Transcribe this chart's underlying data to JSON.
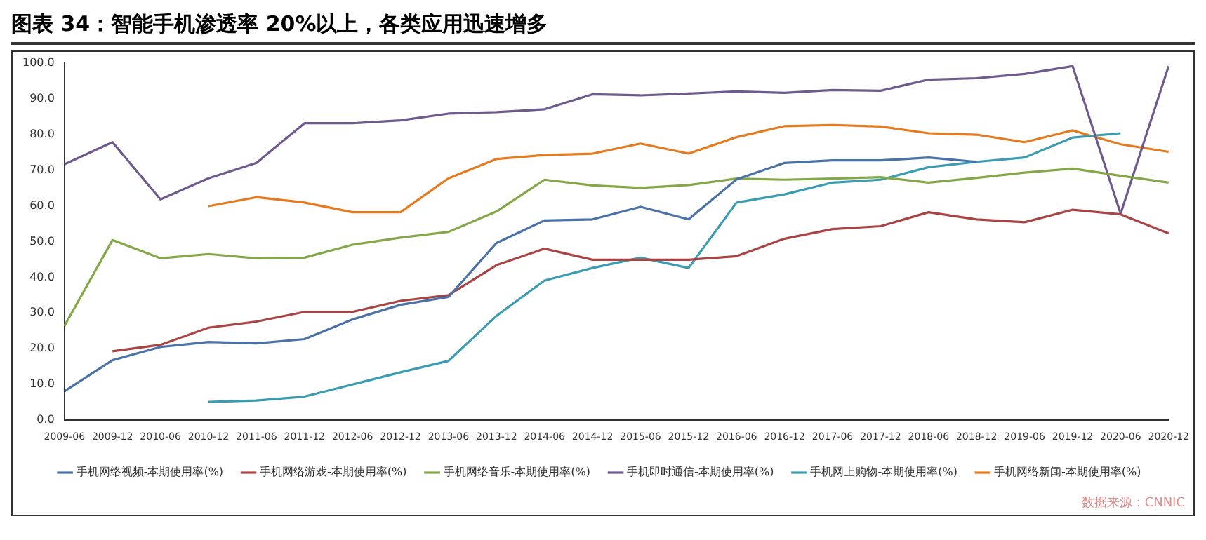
{
  "chart_data": {
    "type": "line",
    "title": "图表 34：智能手机渗透率 20%以上，各类应用迅速增多",
    "categories": [
      "2009-06",
      "2009-12",
      "2010-06",
      "2010-12",
      "2011-06",
      "2011-12",
      "2012-06",
      "2012-12",
      "2013-06",
      "2013-12",
      "2014-06",
      "2014-12",
      "2015-06",
      "2015-12",
      "2016-06",
      "2016-12",
      "2017-06",
      "2017-12",
      "2018-06",
      "2018-12",
      "2019-06",
      "2019-12",
      "2020-06",
      "2020-12"
    ],
    "series": [
      {
        "name": "手机网络视频-本期使用率(%)",
        "color": "#4a72a8",
        "values": [
          8.1,
          16.8,
          20.5,
          21.9,
          21.5,
          22.7,
          28.2,
          32.3,
          34.5,
          49.6,
          55.9,
          56.2,
          59.7,
          56.2,
          67.4,
          72.0,
          72.7,
          72.7,
          73.5,
          72.3,
          null,
          null,
          null,
          null
        ]
      },
      {
        "name": "手机网络游戏-本期使用率(%)",
        "color": "#a84444",
        "values": [
          null,
          19.3,
          21.1,
          25.9,
          27.6,
          30.3,
          30.3,
          33.4,
          35.0,
          43.4,
          48.0,
          44.9,
          44.9,
          44.9,
          45.9,
          50.8,
          53.5,
          54.3,
          58.2,
          56.2,
          55.4,
          58.9,
          57.6,
          52.3
        ]
      },
      {
        "name": "手机网络音乐-本期使用率(%)",
        "color": "#84a848",
        "values": [
          26.4,
          50.4,
          45.3,
          46.5,
          45.3,
          45.5,
          49.1,
          51.1,
          52.7,
          58.4,
          67.3,
          65.7,
          65.0,
          65.8,
          67.6,
          67.3,
          67.6,
          68.0,
          66.5,
          67.8,
          69.3,
          70.4,
          68.4,
          66.5
        ]
      },
      {
        "name": "手机即时通信-本期使用率(%)",
        "color": "#6e5a8e",
        "values": [
          71.6,
          77.8,
          61.8,
          67.7,
          72.0,
          83.1,
          83.1,
          83.9,
          85.8,
          86.2,
          87.0,
          91.2,
          90.9,
          91.4,
          92.0,
          91.6,
          92.4,
          92.2,
          95.3,
          95.7,
          96.9,
          99.1,
          57.8,
          99.1
        ]
      },
      {
        "name": "手机网上购物-本期使用率(%)",
        "color": "#3a9cb0",
        "values": [
          null,
          null,
          null,
          5.1,
          5.5,
          6.6,
          10.0,
          13.4,
          16.6,
          29.2,
          39.1,
          42.6,
          45.5,
          42.6,
          60.9,
          63.2,
          66.5,
          67.3,
          70.8,
          72.3,
          73.5,
          79.1,
          80.3,
          null
        ]
      },
      {
        "name": "手机网络新闻-本期使用率(%)",
        "color": "#e57a1e",
        "values": [
          null,
          null,
          null,
          59.9,
          62.4,
          60.9,
          58.2,
          58.2,
          67.7,
          73.1,
          74.2,
          74.6,
          77.4,
          74.6,
          79.2,
          82.3,
          82.6,
          82.2,
          80.3,
          79.9,
          77.8,
          81.1,
          77.2,
          75.1
        ]
      }
    ],
    "ylim": [
      0,
      100
    ],
    "yticks": [
      {
        "value": 0,
        "label": "0.0"
      },
      {
        "value": 10,
        "label": "10.0"
      },
      {
        "value": 20,
        "label": "20.0"
      },
      {
        "value": 30,
        "label": "30.0"
      },
      {
        "value": 40,
        "label": "40.0"
      },
      {
        "value": 50,
        "label": "50.0"
      },
      {
        "value": 60,
        "label": "60.0"
      },
      {
        "value": 70,
        "label": "70.0"
      },
      {
        "value": 80,
        "label": "80.0"
      },
      {
        "value": 90,
        "label": "90.0"
      },
      {
        "value": 100,
        "label": "100.0"
      }
    ],
    "legend": "bottom",
    "marker": "none",
    "line_style": "solid",
    "annotations": [
      "数据来源：CNNIC"
    ]
  }
}
